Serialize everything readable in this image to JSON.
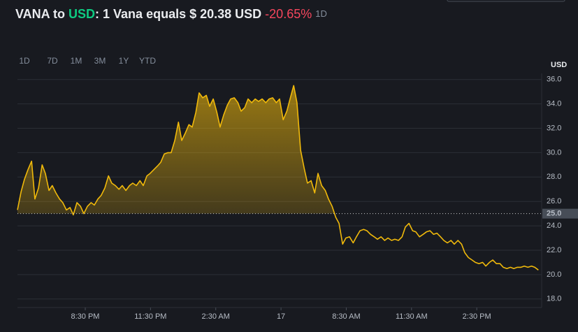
{
  "header": {
    "prefix": "VANA to",
    "quote": "USD",
    "rate": ": 1 Vana equals $ 20.38 USD",
    "change": "-20.65%",
    "period": "1D"
  },
  "ranges": [
    "1D",
    "7D",
    "1M",
    "3M",
    "1Y",
    "YTD"
  ],
  "active_range": 0,
  "chart_data": {
    "type": "area",
    "y_unit": "USD",
    "grid": true,
    "xlim": [
      1043,
      2489
    ],
    "xticks": [
      {
        "value": 1230,
        "label": "8:30 PM"
      },
      {
        "value": 1410,
        "label": "11:30 PM"
      },
      {
        "value": 1590,
        "label": "2:30 AM"
      },
      {
        "value": 1770,
        "label": "17"
      },
      {
        "value": 1950,
        "label": "8:30 AM"
      },
      {
        "value": 2130,
        "label": "11:30 AM"
      },
      {
        "value": 2310,
        "label": "2:30 PM"
      }
    ],
    "ylim": [
      17.3,
      36.5
    ],
    "yticks": [
      {
        "value": 18,
        "label": "18.0"
      },
      {
        "value": 20,
        "label": "20.0"
      },
      {
        "value": 22,
        "label": "22.0"
      },
      {
        "value": 24,
        "label": "24.0"
      },
      {
        "value": 26,
        "label": "26.0"
      },
      {
        "value": 28,
        "label": "28.0"
      },
      {
        "value": 30,
        "label": "30.0"
      },
      {
        "value": 32,
        "label": "32.0"
      },
      {
        "value": 34,
        "label": "34.0"
      },
      {
        "value": 36,
        "label": "36.0"
      }
    ],
    "baseline": {
      "value": 25,
      "label": "25.0"
    },
    "x": [
      1043,
      1053,
      1062,
      1072,
      1082,
      1091,
      1101,
      1111,
      1120,
      1130,
      1139,
      1149,
      1159,
      1168,
      1178,
      1188,
      1197,
      1207,
      1217,
      1226,
      1236,
      1246,
      1255,
      1265,
      1274,
      1284,
      1294,
      1303,
      1313,
      1323,
      1332,
      1342,
      1352,
      1361,
      1371,
      1381,
      1390,
      1400,
      1409,
      1419,
      1429,
      1438,
      1448,
      1458,
      1467,
      1477,
      1487,
      1496,
      1506,
      1516,
      1525,
      1535,
      1544,
      1554,
      1564,
      1573,
      1583,
      1593,
      1602,
      1612,
      1622,
      1631,
      1641,
      1651,
      1660,
      1670,
      1679,
      1689,
      1699,
      1708,
      1718,
      1728,
      1737,
      1747,
      1757,
      1766,
      1776,
      1786,
      1795,
      1805,
      1814,
      1824,
      1834,
      1843,
      1853,
      1863,
      1872,
      1882,
      1892,
      1901,
      1911,
      1921,
      1930,
      1940,
      1949,
      1959,
      1969,
      1978,
      1988,
      1998,
      2007,
      2017,
      2027,
      2036,
      2046,
      2056,
      2065,
      2075,
      2084,
      2094,
      2104,
      2113,
      2123,
      2133,
      2142,
      2152,
      2162,
      2171,
      2181,
      2191,
      2200,
      2210,
      2219,
      2229,
      2239,
      2248,
      2258,
      2268,
      2277,
      2287,
      2297,
      2306,
      2316,
      2326,
      2335,
      2345,
      2354,
      2364,
      2374,
      2383,
      2393,
      2403,
      2412,
      2422,
      2432,
      2441,
      2451,
      2461,
      2470,
      2480
    ],
    "series": [
      {
        "name": "VANA/USD",
        "color": "#f0b90b",
        "values": [
          25.3,
          26.8,
          27.8,
          28.6,
          29.3,
          26.2,
          27.1,
          29.0,
          28.3,
          26.9,
          27.3,
          26.7,
          26.2,
          25.9,
          25.3,
          25.5,
          24.9,
          25.9,
          25.6,
          25.0,
          25.6,
          25.9,
          25.7,
          26.2,
          26.5,
          27.1,
          28.1,
          27.5,
          27.3,
          27.0,
          27.3,
          26.9,
          27.3,
          27.5,
          27.3,
          27.7,
          27.3,
          28.1,
          28.3,
          28.6,
          28.9,
          29.2,
          29.9,
          30.0,
          30.0,
          31.0,
          32.5,
          31.0,
          31.6,
          32.3,
          32.1,
          33.3,
          34.9,
          34.5,
          34.7,
          33.8,
          34.4,
          33.3,
          32.1,
          33.1,
          33.9,
          34.4,
          34.5,
          34.1,
          33.4,
          33.7,
          34.4,
          34.1,
          34.4,
          34.2,
          34.4,
          34.1,
          34.4,
          34.5,
          34.1,
          34.4,
          32.7,
          33.4,
          34.4,
          35.5,
          34.1,
          30.2,
          28.7,
          27.5,
          27.7,
          26.7,
          28.3,
          27.3,
          26.9,
          26.2,
          25.6,
          24.7,
          24.2,
          22.5,
          23.0,
          23.1,
          22.6,
          23.1,
          23.6,
          23.7,
          23.6,
          23.3,
          23.1,
          22.9,
          23.1,
          22.8,
          23.0,
          22.8,
          22.9,
          22.8,
          23.1,
          23.9,
          24.2,
          23.6,
          23.5,
          23.1,
          23.3,
          23.5,
          23.6,
          23.3,
          23.4,
          23.1,
          22.8,
          22.6,
          22.8,
          22.5,
          22.8,
          22.5,
          21.8,
          21.4,
          21.2,
          21.0,
          20.9,
          21.0,
          20.7,
          21.0,
          21.2,
          20.9,
          20.9,
          20.6,
          20.5,
          20.6,
          20.5,
          20.6,
          20.6,
          20.7,
          20.6,
          20.7,
          20.6,
          20.38
        ]
      }
    ]
  }
}
